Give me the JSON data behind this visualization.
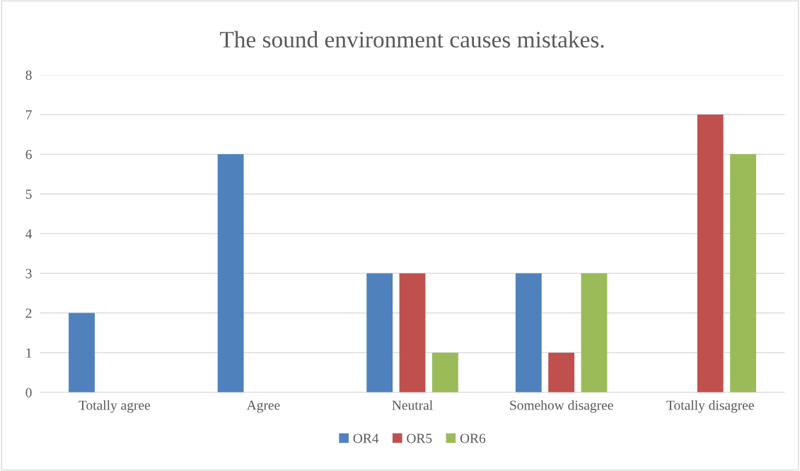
{
  "chart_data": {
    "type": "bar",
    "title": "The sound environment causes mistakes.",
    "categories": [
      "Totally agree",
      "Agree",
      "Neutral",
      "Somehow disagree",
      "Totally disagree"
    ],
    "series": [
      {
        "name": "OR4",
        "color": "#4f81bd",
        "values": [
          2,
          6,
          3,
          3,
          0
        ]
      },
      {
        "name": "OR5",
        "color": "#c0504d",
        "values": [
          0,
          0,
          3,
          1,
          7
        ]
      },
      {
        "name": "OR6",
        "color": "#9bbb59",
        "values": [
          0,
          0,
          1,
          3,
          6
        ]
      }
    ],
    "ylim": [
      0,
      8
    ],
    "yticks": [
      0,
      1,
      2,
      3,
      4,
      5,
      6,
      7,
      8
    ],
    "grid": "y",
    "legend": "bottom"
  }
}
